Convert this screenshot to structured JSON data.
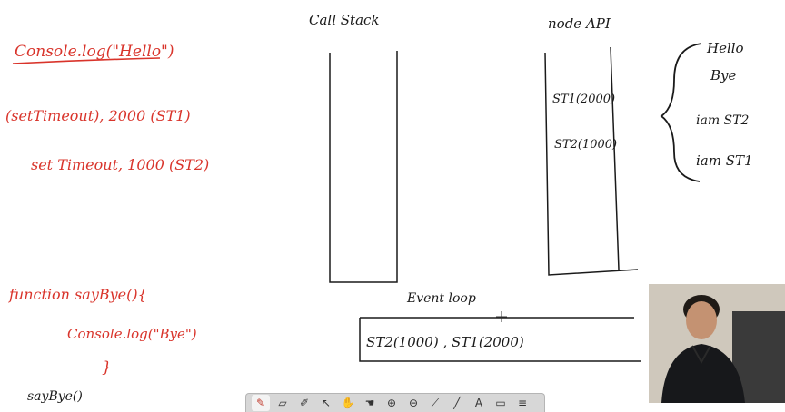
{
  "board": {
    "left_code": {
      "line1": "Console.log(\"Hello\")",
      "line2": "(setTimeout), 2000 (ST1)",
      "line3": "set Timeout, 1000 (ST2)",
      "line4": "function sayBye(){",
      "line5": "Console.log(\"Bye\")",
      "line6": "}",
      "line7": "sayBye()"
    },
    "call_stack_label": "Call Stack",
    "node_api": {
      "label": "node API",
      "item1": "ST1(2000)",
      "item2": "ST2(1000)"
    },
    "event_loop": {
      "label": "Event loop",
      "queue_text": "ST2(1000) , ST1(2000)"
    },
    "output": {
      "line1": "Hello",
      "line2": "Bye",
      "line3": "iam ST2",
      "line4": "iam ST1"
    }
  },
  "toolbar": {
    "tools": [
      {
        "name": "pen-icon",
        "glyph": "✎"
      },
      {
        "name": "eraser-icon",
        "glyph": "▱"
      },
      {
        "name": "highlighter-icon",
        "glyph": "✐"
      },
      {
        "name": "pointer-icon",
        "glyph": "↖"
      },
      {
        "name": "hand-icon",
        "glyph": "✋"
      },
      {
        "name": "hand-pan-icon",
        "glyph": "☚"
      },
      {
        "name": "zoom-in-icon",
        "glyph": "⊕"
      },
      {
        "name": "zoom-out-icon",
        "glyph": "⊖"
      },
      {
        "name": "brush-icon",
        "glyph": "⟋"
      },
      {
        "name": "line-icon",
        "glyph": "╱"
      },
      {
        "name": "text-tool-icon",
        "glyph": "A"
      },
      {
        "name": "image-icon",
        "glyph": "▭"
      },
      {
        "name": "menu-icon",
        "glyph": "≡"
      }
    ]
  },
  "colors": {
    "ink_red": "#d9342b",
    "ink_black": "#1a1a1a"
  }
}
